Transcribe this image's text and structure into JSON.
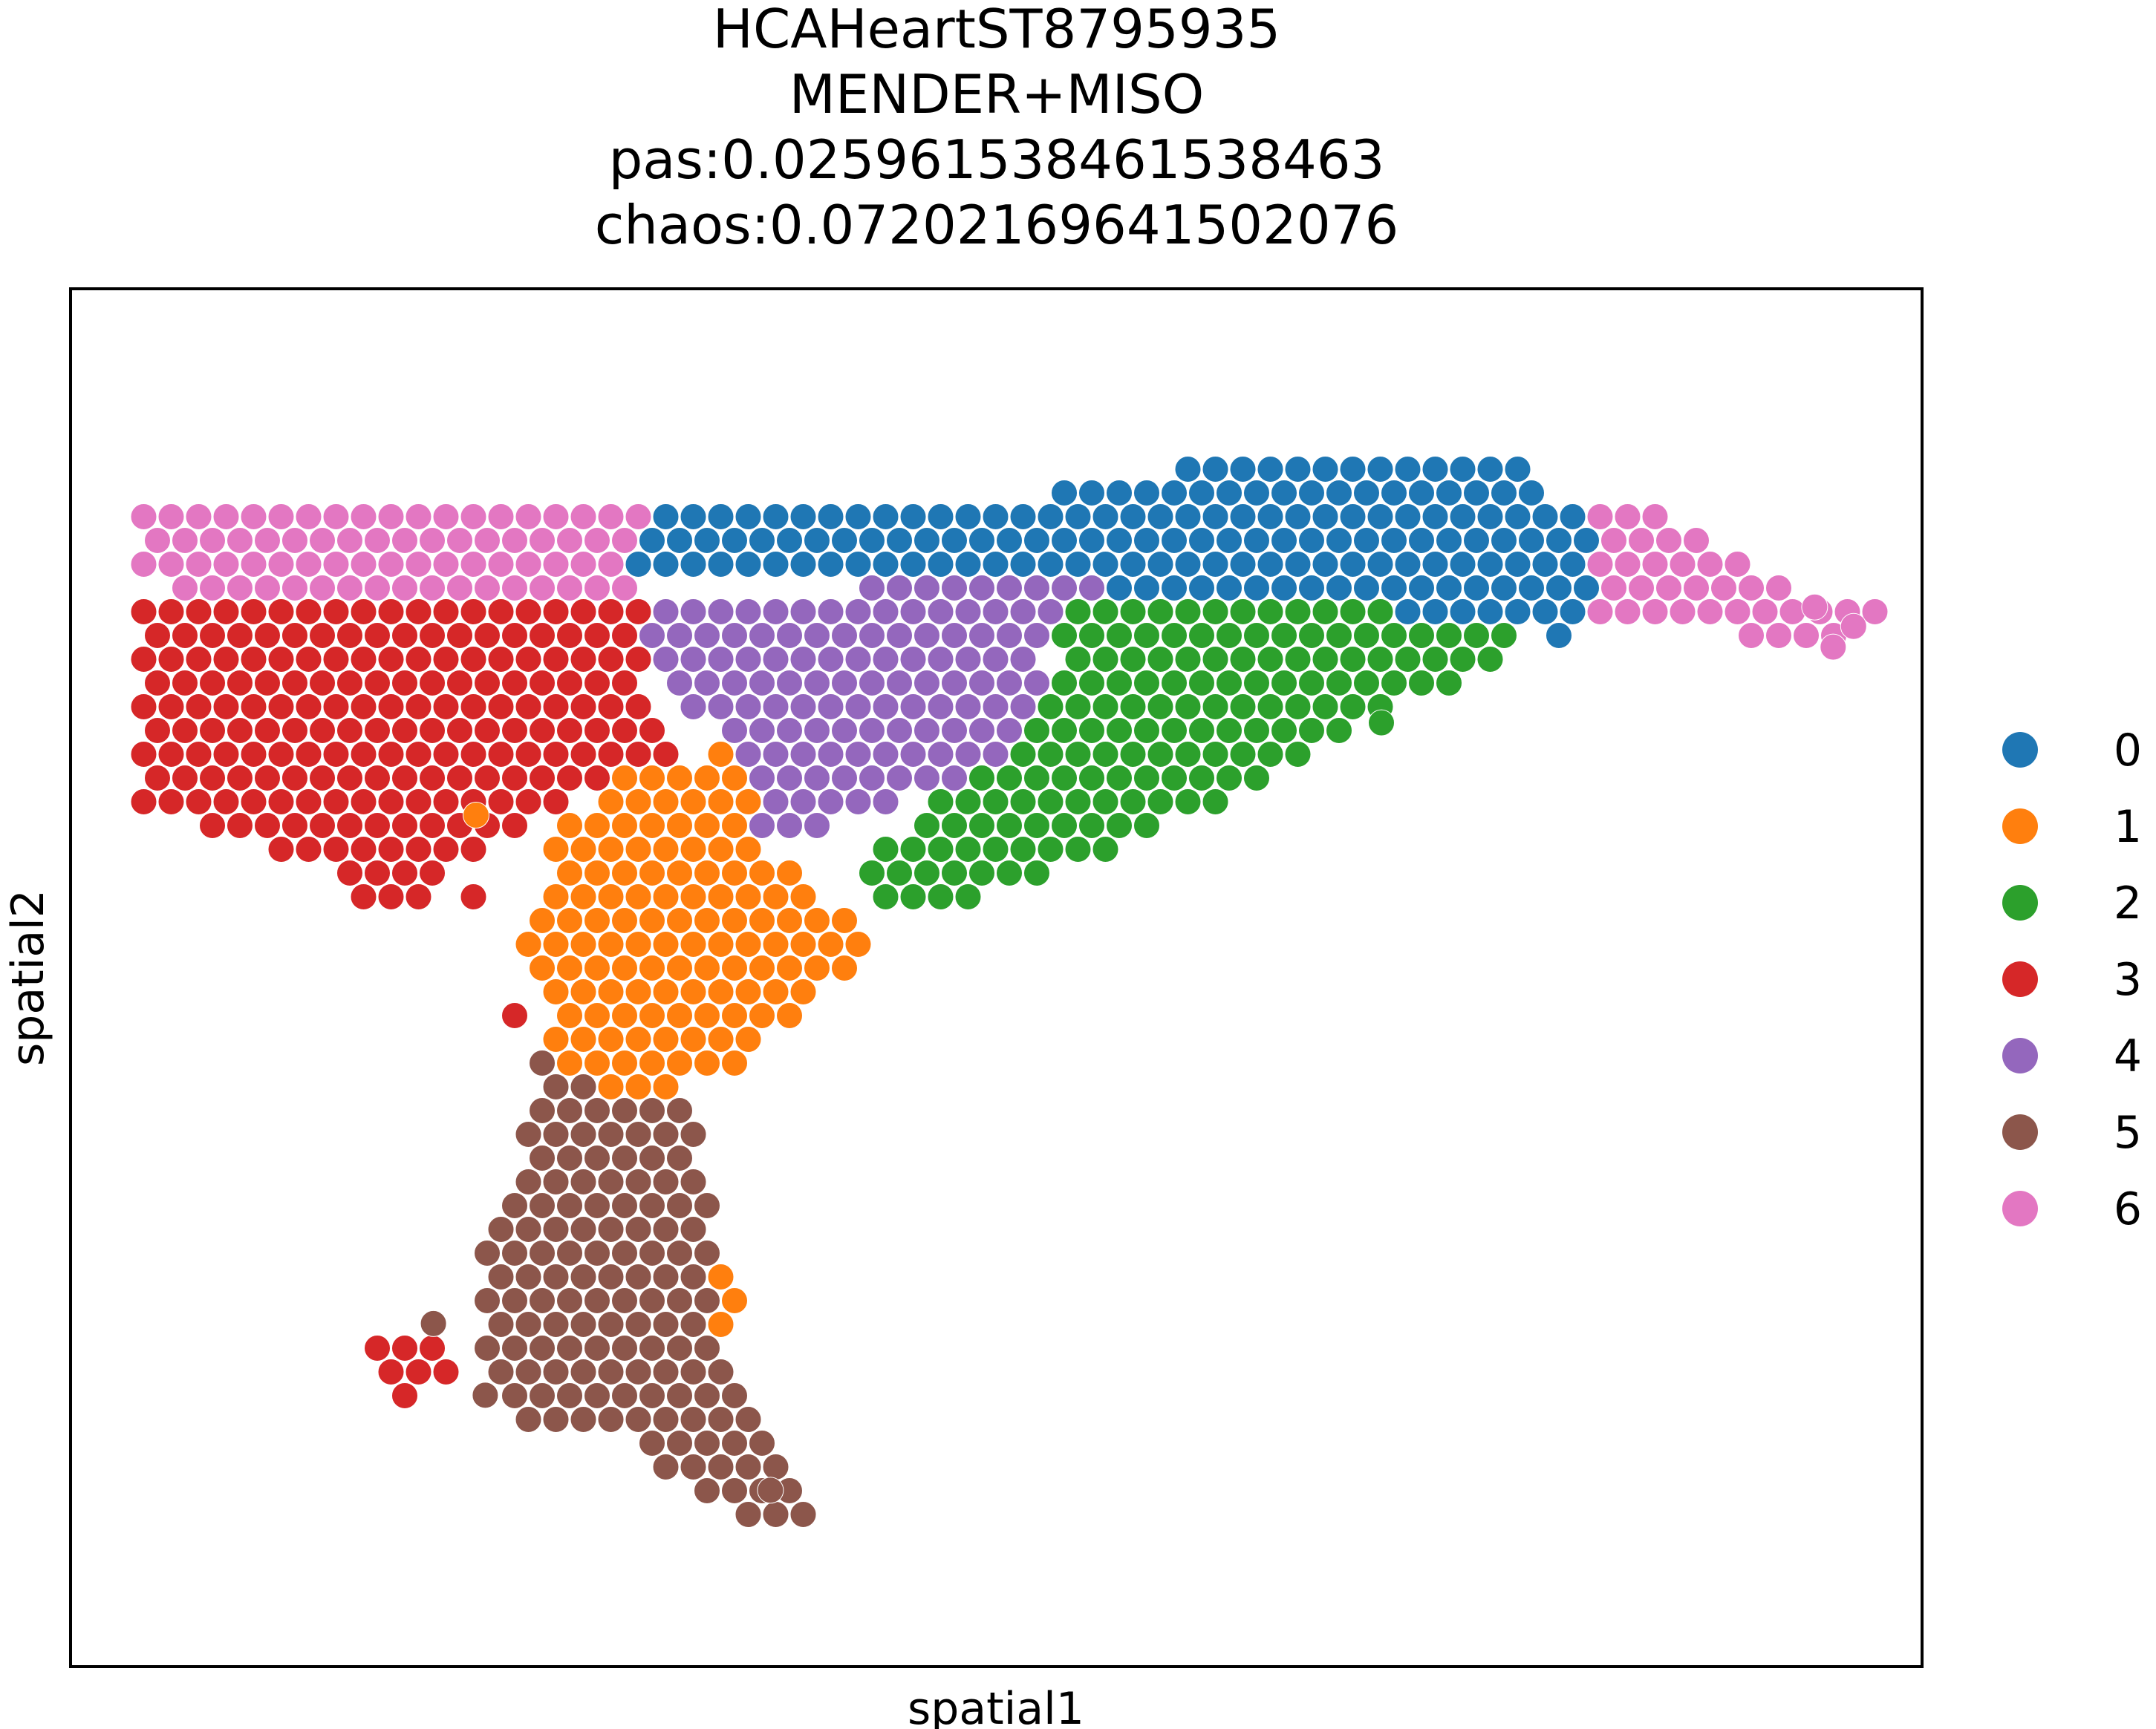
{
  "chart_data": {
    "type": "scatter",
    "title": [
      "HCAHeartST8795935",
      "MENDER+MISO",
      "pas:0.025961538461538463",
      "chaos:0.07202169641502076"
    ],
    "xlabel": "spatial1",
    "ylabel": "spatial2",
    "xlim": [
      0,
      100
    ],
    "ylim": [
      0,
      100
    ],
    "grid": false,
    "legend_placement": "right",
    "legend": [
      {
        "label": "0",
        "color": "#1f77b4"
      },
      {
        "label": "1",
        "color": "#ff7f0e"
      },
      {
        "label": "2",
        "color": "#2ca02c"
      },
      {
        "label": "3",
        "color": "#d62728"
      },
      {
        "label": "4",
        "color": "#9467bd"
      },
      {
        "label": "5",
        "color": "#8c564b"
      },
      {
        "label": "6",
        "color": "#e377c2"
      }
    ],
    "regions": [
      {
        "cluster": "6",
        "polygon": [
          [
            3.8,
            84.6
          ],
          [
            31,
            84.6
          ],
          [
            31,
            76.7
          ],
          [
            7.6,
            76.7
          ],
          [
            3.8,
            79.2
          ]
        ]
      },
      {
        "cluster": "6",
        "polygon": [
          [
            81.5,
            84.0
          ],
          [
            86,
            84.0
          ],
          [
            94,
            78.0
          ],
          [
            98,
            77.0
          ],
          [
            96,
            74.2
          ],
          [
            82.5,
            75.5
          ],
          [
            82.5,
            78.0
          ]
        ]
      },
      {
        "cluster": "0",
        "polygon": [
          [
            31,
            84.6
          ],
          [
            50.5,
            84.6
          ],
          [
            64,
            87.8
          ],
          [
            79,
            87.8
          ],
          [
            79,
            85.5
          ],
          [
            81.5,
            84.0
          ],
          [
            82.5,
            78.0
          ],
          [
            82.5,
            75.5
          ],
          [
            79.5,
            74.5
          ],
          [
            79.5,
            76.2
          ],
          [
            54.2,
            76.2
          ],
          [
            50.5,
            79.3
          ],
          [
            30.2,
            79.1
          ]
        ]
      },
      {
        "cluster": "4",
        "polygon": [
          [
            31,
            76.7
          ],
          [
            49.5,
            79.3
          ],
          [
            55.6,
            79.3
          ],
          [
            55.6,
            77.2
          ],
          [
            53.7,
            76.3
          ],
          [
            52.2,
            70.2
          ],
          [
            51.5,
            66.5
          ],
          [
            47,
            63.8
          ],
          [
            43,
            62.0
          ],
          [
            37,
            59.3
          ],
          [
            36.3,
            67.4
          ],
          [
            31.3,
            71.5
          ]
        ]
      },
      {
        "cluster": "2",
        "polygon": [
          [
            55.6,
            77.2
          ],
          [
            79.5,
            76.2
          ],
          [
            77.5,
            73.5
          ],
          [
            72.5,
            70.0
          ],
          [
            67,
            66.3
          ],
          [
            64,
            64.0
          ],
          [
            57,
            59.5
          ],
          [
            53,
            57.5
          ],
          [
            48,
            55.0
          ],
          [
            43,
            54.2
          ],
          [
            43,
            55.5
          ],
          [
            43.5,
            59.3
          ],
          [
            47,
            63.8
          ],
          [
            51.5,
            66.5
          ],
          [
            53.7,
            76.3
          ]
        ]
      },
      {
        "cluster": "3",
        "polygon": [
          [
            3.8,
            76.7
          ],
          [
            31.3,
            76.7
          ],
          [
            31.3,
            71.5
          ],
          [
            32.5,
            65.5
          ],
          [
            29.5,
            64.5
          ],
          [
            23,
            59.5
          ],
          [
            17,
            54.0
          ],
          [
            14,
            57.5
          ],
          [
            12,
            59.0
          ],
          [
            3.8,
            62.6
          ],
          [
            3.8,
            68.0
          ]
        ]
      },
      {
        "cluster": "1",
        "polygon": [
          [
            32.5,
            65.5
          ],
          [
            36.3,
            67.4
          ],
          [
            37,
            59.3
          ],
          [
            43,
            54.2
          ],
          [
            43,
            51.5
          ],
          [
            40,
            48.5
          ],
          [
            36,
            42.5
          ],
          [
            33,
            42.0
          ],
          [
            30,
            40.5
          ],
          [
            28.5,
            42.0
          ],
          [
            25.5,
            45.2
          ],
          [
            25.5,
            49.5
          ],
          [
            23,
            51.5
          ],
          [
            25.5,
            55.5
          ],
          [
            25.5,
            60.5
          ],
          [
            29.5,
            64.5
          ]
        ]
      },
      {
        "cluster": "1",
        "polygon": [
          [
            34.5,
            30.5
          ],
          [
            36.5,
            27.8
          ],
          [
            36.0,
            25.0
          ],
          [
            34.5,
            23.6
          ]
        ]
      },
      {
        "cluster": "5",
        "polygon": [
          [
            25.5,
            45.2
          ],
          [
            28.5,
            42.0
          ],
          [
            30,
            40.5
          ],
          [
            33,
            42.0
          ],
          [
            35,
            33.5
          ],
          [
            34.8,
            23.6
          ],
          [
            36.5,
            20.0
          ],
          [
            37.8,
            17.0
          ],
          [
            39.5,
            14.0
          ],
          [
            40.8,
            11.5
          ],
          [
            37.5,
            10.0
          ],
          [
            35,
            11.5
          ],
          [
            29.5,
            17.0
          ],
          [
            24.5,
            17.5
          ],
          [
            22,
            21.0
          ],
          [
            22.5,
            26.0
          ],
          [
            22,
            30.0
          ],
          [
            24,
            36.5
          ]
        ]
      },
      {
        "cluster": "3",
        "polygon": [
          [
            16,
            23.5
          ],
          [
            20,
            23.8
          ],
          [
            20.5,
            21.0
          ],
          [
            18.5,
            18.5
          ],
          [
            17.0,
            20.0
          ]
        ]
      },
      {
        "cluster": "3",
        "polygon": [
          [
            33.6,
            13.3
          ],
          [
            34.8,
            11.0
          ],
          [
            33.0,
            11.5
          ]
        ]
      },
      {
        "cluster": "3",
        "polygon": [
          [
            23.0,
            48.2
          ],
          [
            24.5,
            47.0
          ],
          [
            22.8,
            46.5
          ]
        ]
      },
      {
        "cluster": "3",
        "polygon": [
          [
            21.0,
            56.8
          ],
          [
            22.5,
            55.0
          ],
          [
            21.0,
            54.6
          ]
        ]
      }
    ],
    "outliers": [
      {
        "cluster": "6",
        "x": 94.2,
        "y": 76.9
      },
      {
        "cluster": "6",
        "x": 96.3,
        "y": 75.5
      },
      {
        "cluster": "6",
        "x": 95.2,
        "y": 74.0
      },
      {
        "cluster": "1",
        "x": 21.9,
        "y": 61.8
      },
      {
        "cluster": "2",
        "x": 70.8,
        "y": 68.5
      },
      {
        "cluster": "5",
        "x": 19.6,
        "y": 24.9
      },
      {
        "cluster": "5",
        "x": 22.4,
        "y": 19.7
      },
      {
        "cluster": "5",
        "x": 37.8,
        "y": 12.8
      }
    ]
  }
}
